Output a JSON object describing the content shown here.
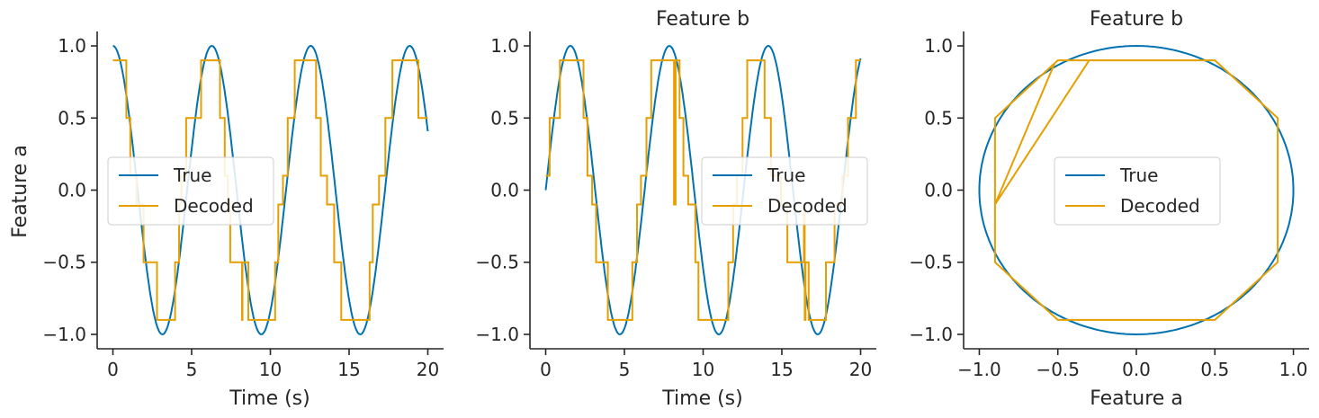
{
  "chart_data": [
    {
      "type": "line",
      "title": "",
      "xlabel": "Time (s)",
      "ylabel": "Feature a",
      "xlim": [
        -1,
        21
      ],
      "ylim": [
        -1.1,
        1.1
      ],
      "xticks": [
        0,
        5,
        10,
        15,
        20
      ],
      "xtick_labels": [
        "0",
        "5",
        "10",
        "15",
        "20"
      ],
      "yticks": [
        -1.0,
        -0.5,
        0.0,
        0.5,
        1.0
      ],
      "ytick_labels": [
        "−1.0",
        "−0.5",
        "0.0",
        "0.5",
        "1.0"
      ],
      "legend": {
        "placement": "center-left",
        "entries": [
          "True",
          "Decoded"
        ]
      },
      "grid": false,
      "series": [
        {
          "name": "True",
          "color": "#0072b2",
          "function": "cos(t)",
          "x_range": [
            0,
            20
          ]
        },
        {
          "name": "Decoded",
          "color": "#e69f00",
          "style": "step",
          "x": [
            0,
            0.85,
            1.1,
            1.5,
            1.95,
            2.2,
            2.35,
            2.45,
            2.8,
            3.5,
            3.95,
            4.2,
            4.35,
            4.65,
            5.2,
            5.6,
            5.9,
            6.8,
            7.1,
            7.3,
            7.45,
            7.7,
            8.1,
            8.2,
            8.23,
            8.25,
            8.6,
            8.85,
            9.0,
            9.5,
            10.3,
            10.5,
            10.8,
            10.9,
            11.1,
            11.55,
            12.2,
            12.9,
            13.2,
            13.6,
            14.05,
            14.4,
            14.5,
            14.85,
            15.0,
            16.3,
            16.5,
            16.9,
            17.3,
            17.55,
            17.75,
            18.0,
            18.25,
            19.0,
            19.4,
            19.8,
            20.0
          ],
          "y": [
            0.9,
            0.5,
            0.1,
            -0.1,
            -0.5,
            -0.5,
            -0.5,
            -0.5,
            -0.9,
            -0.9,
            -0.5,
            -0.1,
            0.1,
            0.5,
            0.5,
            0.9,
            0.9,
            0.5,
            0.1,
            -0.1,
            -0.5,
            -0.5,
            -0.5,
            -0.9,
            -0.5,
            -0.5,
            -0.9,
            -0.9,
            -0.9,
            -0.9,
            -0.5,
            -0.1,
            0.1,
            0.1,
            0.5,
            0.9,
            0.9,
            0.5,
            0.1,
            -0.1,
            -0.5,
            -0.5,
            -0.9,
            -0.9,
            -0.9,
            -0.5,
            -0.1,
            0.1,
            0.5,
            0.5,
            0.9,
            0.9,
            0.9,
            0.9,
            0.5,
            0.5,
            0.5
          ]
        }
      ]
    },
    {
      "type": "line",
      "title": "Feature b",
      "xlabel": "Time (s)",
      "ylabel": "",
      "xlim": [
        -1,
        21
      ],
      "ylim": [
        -1.1,
        1.1
      ],
      "xticks": [
        0,
        5,
        10,
        15,
        20
      ],
      "xtick_labels": [
        "0",
        "5",
        "10",
        "15",
        "20"
      ],
      "yticks": [
        -1.0,
        -0.5,
        0.0,
        0.5,
        1.0
      ],
      "ytick_labels": [
        "−1.0",
        "−0.5",
        "0.0",
        "0.5",
        "1.0"
      ],
      "legend": {
        "placement": "center-right",
        "entries": [
          "True",
          "Decoded"
        ]
      },
      "grid": false,
      "series": [
        {
          "name": "True",
          "color": "#0072b2",
          "function": "sin(t)",
          "x_range": [
            0,
            20
          ]
        },
        {
          "name": "Decoded",
          "color": "#e69f00",
          "style": "step",
          "x": [
            0,
            0.25,
            0.5,
            0.9,
            2.4,
            2.65,
            2.95,
            3.2,
            3.45,
            3.95,
            5.5,
            5.8,
            6.05,
            6.4,
            6.7,
            7.1,
            7.8,
            7.95,
            8.15,
            8.25,
            8.5,
            8.75,
            9.05,
            9.5,
            9.7,
            10.1,
            11.6,
            11.9,
            12.15,
            12.5,
            12.8,
            13.2,
            13.9,
            14.3,
            14.95,
            15.35,
            15.6,
            16.4,
            16.45,
            16.5,
            16.7,
            17.8,
            18.35,
            18.85,
            19.2,
            19.7,
            20.0
          ],
          "y": [
            0.1,
            0.5,
            0.5,
            0.9,
            0.5,
            0.1,
            -0.1,
            -0.5,
            -0.5,
            -0.9,
            -0.5,
            -0.1,
            0.1,
            0.5,
            0.9,
            0.9,
            0.9,
            0.9,
            -0.1,
            0.9,
            0.5,
            0.1,
            -0.1,
            -0.5,
            -0.9,
            -0.9,
            -0.5,
            -0.1,
            0.1,
            0.5,
            0.9,
            0.9,
            0.5,
            0.1,
            -0.1,
            -0.5,
            -0.5,
            -0.1,
            -0.9,
            -0.5,
            -0.9,
            -0.5,
            -0.1,
            0.1,
            0.5,
            0.9,
            0.9
          ]
        }
      ]
    },
    {
      "type": "line",
      "title": "Feature b",
      "xlabel": "Feature a",
      "ylabel": "",
      "xlim": [
        -1.1,
        1.1
      ],
      "ylim": [
        -1.1,
        1.1
      ],
      "xticks": [
        -1.0,
        -0.5,
        0.0,
        0.5,
        1.0
      ],
      "xtick_labels": [
        "−1.0",
        "−0.5",
        "0.0",
        "0.5",
        "1.0"
      ],
      "yticks": [
        -1.0,
        -0.5,
        0.0,
        0.5,
        1.0
      ],
      "ytick_labels": [
        "−1.0",
        "−0.5",
        "0.0",
        "0.5",
        "1.0"
      ],
      "legend": {
        "placement": "center",
        "entries": [
          "True",
          "Decoded"
        ]
      },
      "grid": false,
      "series": [
        {
          "name": "True",
          "color": "#0072b2",
          "function": "circle (cos t, sin t)"
        },
        {
          "name": "Decoded",
          "color": "#e69f00",
          "style": "polyline",
          "x": [
            -0.9,
            -0.9,
            -0.5,
            0.5,
            0.9,
            0.9,
            0.5,
            -0.5,
            -0.9,
            -0.9,
            -0.52,
            -0.9,
            -0.3
          ],
          "y": [
            -0.1,
            -0.5,
            -0.9,
            -0.9,
            -0.5,
            0.5,
            0.9,
            0.9,
            0.5,
            -0.1,
            0.88,
            -0.1,
            0.9
          ]
        }
      ]
    }
  ]
}
